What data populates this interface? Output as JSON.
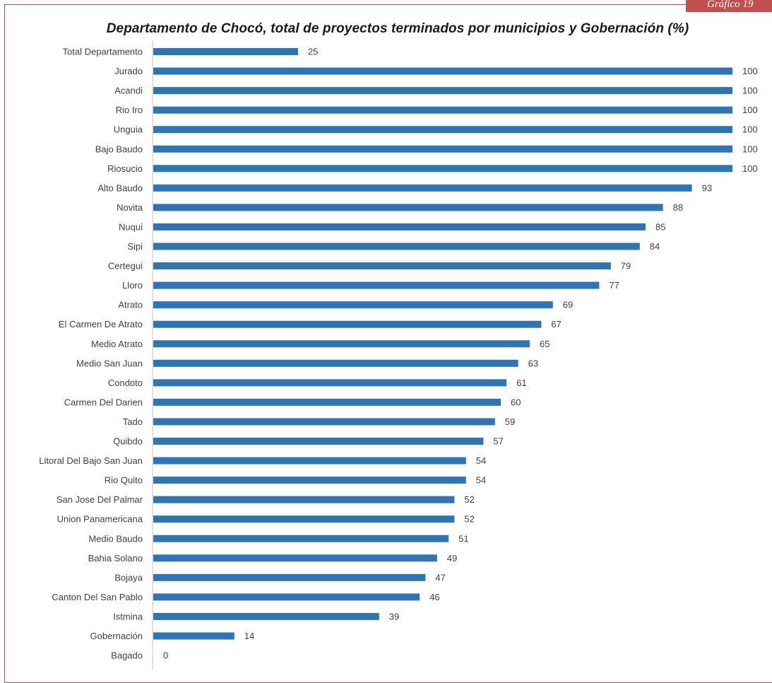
{
  "badge": "Gráfico 19",
  "chart_data": {
    "type": "bar",
    "orientation": "horizontal",
    "title": "Departamento de Chocó, total de proyectos terminados por municipios y Gobernación (%)",
    "xlim": [
      0,
      100
    ],
    "grid": false,
    "bar_color": "#2e75b6",
    "categories": [
      "Total Departamento",
      "Jurado",
      "Acandi",
      "Rio Iro",
      "Unguia",
      "Bajo Baudo",
      "Riosucio",
      "Alto Baudo",
      "Novita",
      "Nuqui",
      "Sipi",
      "Certegui",
      "Lloro",
      "Atrato",
      "El Carmen De Atrato",
      "Medio Atrato",
      "Medio San Juan",
      "Condoto",
      "Carmen Del Darien",
      "Tado",
      "Quibdo",
      "Litoral Del Bajo San Juan",
      "Rio Quito",
      "San Jose Del Palmar",
      "Union Panamericana",
      "Medio Baudo",
      "Bahia Solano",
      "Bojaya",
      "Canton Del San Pablo",
      "Istmina",
      "Gobernación",
      "Bagado"
    ],
    "values": [
      25,
      100,
      100,
      100,
      100,
      100,
      100,
      93,
      88,
      85,
      84,
      79,
      77,
      69,
      67,
      65,
      63,
      61,
      60,
      59,
      57,
      54,
      54,
      52,
      52,
      51,
      49,
      47,
      46,
      39,
      14,
      0
    ]
  }
}
